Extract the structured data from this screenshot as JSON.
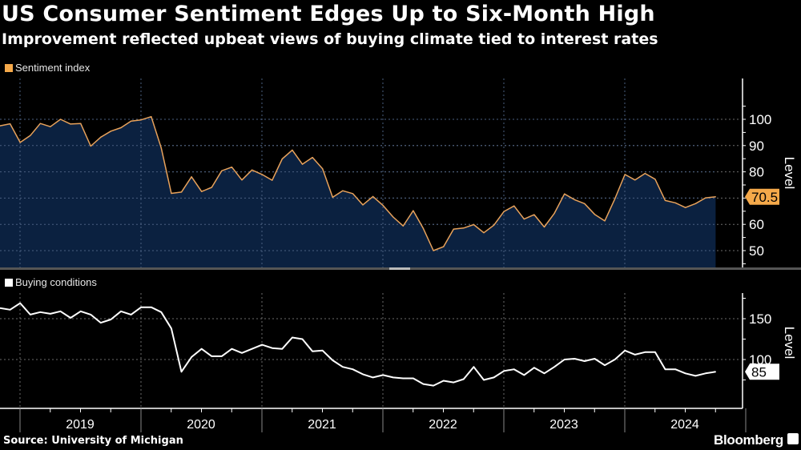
{
  "header": {
    "title": "US Consumer Sentiment Edges Up to Six-Month High",
    "subtitle": "Improvement reflected upbeat views of buying climate tied to interest rates"
  },
  "footer": {
    "source": "Source: University of Michigan",
    "brand": "Bloomberg"
  },
  "colors": {
    "background": "#000000",
    "sentiment_line": "#e8a25b",
    "sentiment_fill": "#0b2140",
    "sentiment_badge": "#f5a94a",
    "buying_line": "#ffffff",
    "grid": "#6d6d6d"
  },
  "chart_data": [
    {
      "type": "area",
      "title": "",
      "legend": [
        "Sentiment index"
      ],
      "legend_placement": "top-left",
      "ylabel": "Level",
      "yticks": [
        50,
        60,
        70,
        80,
        90,
        100
      ],
      "ylim": [
        45,
        105
      ],
      "grid": true,
      "last_value_label": "70.5",
      "x_start": "2018-11",
      "x_end": "2024-10",
      "xtick_labels": [
        "2019",
        "2020",
        "2021",
        "2022",
        "2023",
        "2024"
      ],
      "series": [
        {
          "name": "Sentiment index",
          "values": [
            97.5,
            98.3,
            91.2,
            93.8,
            98.4,
            97.2,
            100.0,
            98.2,
            98.4,
            89.8,
            93.2,
            95.5,
            96.8,
            99.3,
            99.8,
            101.0,
            89.1,
            71.8,
            72.3,
            78.1,
            72.5,
            74.1,
            80.4,
            81.8,
            76.9,
            80.7,
            79.0,
            76.8,
            84.9,
            88.3,
            82.9,
            85.5,
            81.2,
            70.3,
            72.8,
            71.7,
            67.4,
            70.6,
            67.2,
            62.8,
            59.4,
            65.2,
            58.4,
            50.0,
            51.5,
            58.2,
            58.6,
            59.9,
            56.8,
            59.7,
            64.9,
            67.0,
            62.0,
            63.7,
            59.0,
            64.2,
            71.6,
            69.4,
            67.9,
            63.8,
            61.3,
            69.7,
            79.0,
            76.9,
            79.4,
            77.2,
            69.1,
            68.2,
            66.4,
            67.9,
            70.1,
            70.5
          ]
        }
      ]
    },
    {
      "type": "line",
      "title": "",
      "legend": [
        "Buying conditions"
      ],
      "legend_placement": "top-left",
      "ylabel": "Level",
      "yticks": [
        100,
        150
      ],
      "ylim": [
        70,
        180
      ],
      "grid": true,
      "last_value_label": "85",
      "x_start": "2018-11",
      "x_end": "2024-10",
      "xtick_labels": [
        "2019",
        "2020",
        "2021",
        "2022",
        "2023",
        "2024"
      ],
      "series": [
        {
          "name": "Buying conditions",
          "values": [
            163,
            161,
            169,
            155,
            158,
            156,
            159,
            151,
            159,
            155,
            145,
            149,
            159,
            155,
            164,
            164,
            158,
            138,
            85,
            103,
            113,
            104,
            104,
            113,
            108,
            113,
            118,
            114,
            113,
            127,
            125,
            110,
            111,
            99,
            91,
            88,
            82,
            78,
            81,
            78,
            77,
            77,
            70,
            68,
            74,
            72,
            76,
            91,
            75,
            78,
            86,
            88,
            81,
            90,
            83,
            91,
            100,
            101,
            98,
            101,
            93,
            100,
            111,
            106,
            109,
            109,
            88,
            88,
            83,
            80,
            83,
            85
          ]
        }
      ]
    }
  ]
}
